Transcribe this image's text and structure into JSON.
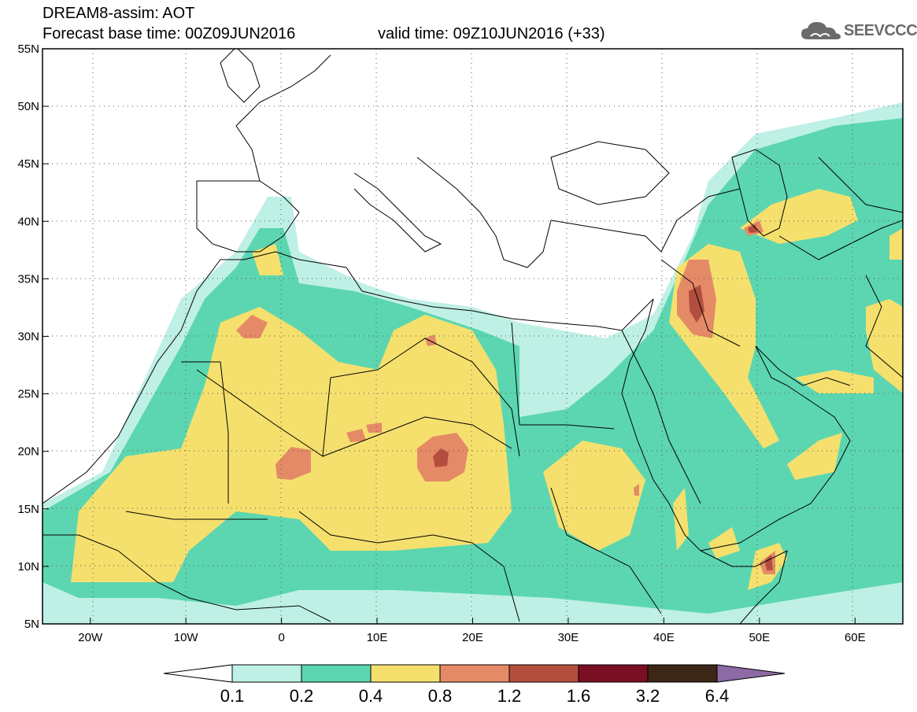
{
  "header": {
    "title_line1": "DREAM8-assim: AOT",
    "title_line2": "Forecast base time: 00Z09JUN2016",
    "valid_time": "valid time: 09Z10JUN2016 (+33)",
    "logo_text": "SEEVCCC"
  },
  "map": {
    "lat_range": [
      5,
      55
    ],
    "lon_range": [
      -25,
      65
    ],
    "lat_ticks": [
      {
        "value": 55,
        "label": "55N"
      },
      {
        "value": 50,
        "label": "50N"
      },
      {
        "value": 45,
        "label": "45N"
      },
      {
        "value": 40,
        "label": "40N"
      },
      {
        "value": 35,
        "label": "35N"
      },
      {
        "value": 30,
        "label": "30N"
      },
      {
        "value": 25,
        "label": "25N"
      },
      {
        "value": 20,
        "label": "20N"
      },
      {
        "value": 15,
        "label": "15N"
      },
      {
        "value": 10,
        "label": "10N"
      },
      {
        "value": 5,
        "label": "5N"
      }
    ],
    "lon_ticks": [
      {
        "value": -20,
        "label": "20W"
      },
      {
        "value": -10,
        "label": "10W"
      },
      {
        "value": 0,
        "label": "0"
      },
      {
        "value": 10,
        "label": "10E"
      },
      {
        "value": 20,
        "label": "20E"
      },
      {
        "value": 30,
        "label": "30E"
      },
      {
        "value": 40,
        "label": "40E"
      },
      {
        "value": 50,
        "label": "50E"
      },
      {
        "value": 60,
        "label": "60E"
      }
    ]
  },
  "colorbar": {
    "min_color": "#ffffff",
    "max_color": "#8e6aa6",
    "levels": [
      "0.1",
      "0.2",
      "0.4",
      "0.8",
      "1.2",
      "1.6",
      "3.2",
      "6.4"
    ],
    "colors": [
      "#bff0e6",
      "#5cd6b0",
      "#f5e06e",
      "#e58a66",
      "#b34e3f",
      "#7a0e23",
      "#3b2617"
    ]
  },
  "colors": {
    "c1": "#bff0e6",
    "c2": "#5cd6b0",
    "c3": "#f5e06e",
    "c4": "#e58a66",
    "c5": "#b34e3f",
    "c6": "#7a0e23"
  }
}
